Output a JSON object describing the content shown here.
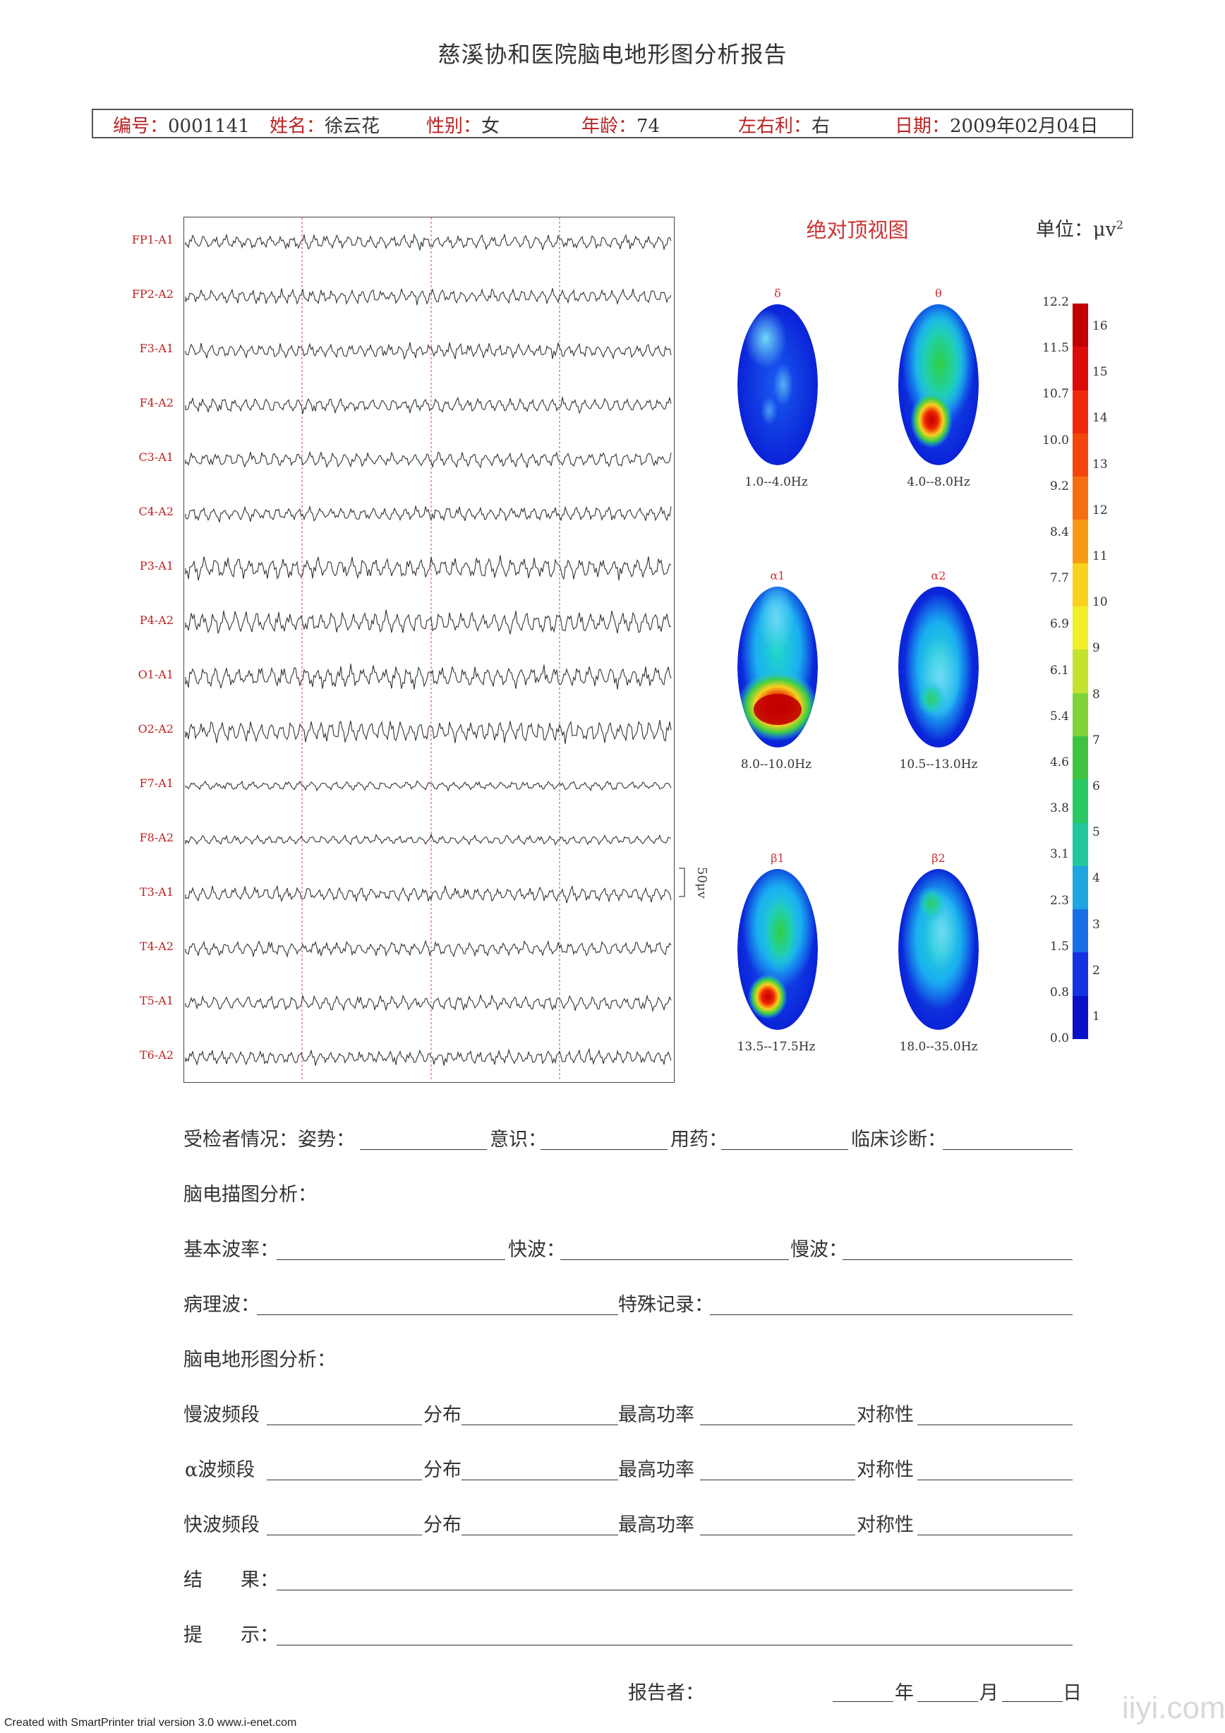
{
  "title": "慈溪协和医院脑电地形图分析报告",
  "info": {
    "id_label": "编号：",
    "id_value": "0001141",
    "name_label": "姓名：",
    "name_value": "徐云花",
    "sex_label": "性别：",
    "sex_value": "女",
    "age_label": "年龄：",
    "age_value": "74",
    "hand_label": "左右利：",
    "hand_value": "右",
    "date_label": "日期：",
    "date_value": "2009年02月04日"
  },
  "channels": [
    "FP1-A1",
    "FP2-A2",
    "F3-A1",
    "F4-A2",
    "C3-A1",
    "C4-A2",
    "P3-A1",
    "P4-A2",
    "O1-A1",
    "O2-A2",
    "F7-A1",
    "F8-A2",
    "T3-A1",
    "T4-A2",
    "T5-A1",
    "T6-A2"
  ],
  "calibration_label": "50μv",
  "maps": {
    "title": "绝对顶视图",
    "unit": "单位：μv",
    "unit_sup": "2",
    "bands": [
      {
        "symbol": "δ",
        "range": "1.0--4.0Hz"
      },
      {
        "symbol": "θ",
        "range": "4.0--8.0Hz"
      },
      {
        "symbol": "α1",
        "range": "8.0--10.0Hz"
      },
      {
        "symbol": "α2",
        "range": "10.5--13.0Hz"
      },
      {
        "symbol": "β1",
        "range": "13.5--17.5Hz"
      },
      {
        "symbol": "β2",
        "range": "18.0--35.0Hz"
      }
    ],
    "scale_values": [
      "12.2",
      "11.5",
      "10.7",
      "10.0",
      "9.2",
      "8.4",
      "7.7",
      "6.9",
      "6.1",
      "5.4",
      "4.6",
      "3.8",
      "3.1",
      "2.3",
      "1.5",
      "0.8",
      "0.0"
    ],
    "scale_levels": [
      "16",
      "15",
      "14",
      "13",
      "12",
      "11",
      "10",
      "9",
      "8",
      "7",
      "6",
      "5",
      "4",
      "3",
      "2",
      "1"
    ],
    "scale_colors": [
      "#c00000",
      "#dd0a0a",
      "#ee2a0a",
      "#f3460a",
      "#f56e10",
      "#f89a14",
      "#f8d21c",
      "#f2ee28",
      "#c4e230",
      "#7fd43a",
      "#3ec43e",
      "#28c864",
      "#20c8a0",
      "#1ea6e0",
      "#1870e6",
      "#1432e0",
      "#0a10c8"
    ]
  },
  "form": {
    "row1": {
      "label": "受检者情况：姿势：",
      "f2": "意识：",
      "f3": "用药：",
      "f4": "临床诊断："
    },
    "row2": {
      "label": "脑电描图分析："
    },
    "row3": {
      "label": "基本波率：",
      "f2": "快波：",
      "f3": "慢波："
    },
    "row4": {
      "label": "病理波：",
      "f2": "特殊记录："
    },
    "row5": {
      "label": "脑电地形图分析："
    },
    "row6": {
      "label": "慢波频段",
      "f2": "分布",
      "f3": "最高功率",
      "f4": "对称性"
    },
    "row7": {
      "label": "α波频段",
      "f2": "分布",
      "f3": "最高功率",
      "f4": "对称性"
    },
    "row8": {
      "label": "快波频段",
      "f2": "分布",
      "f3": "最高功率",
      "f4": "对称性"
    },
    "row9": {
      "label": "结　　果："
    },
    "row10": {
      "label": "提　　示："
    },
    "reporter": "报告者：",
    "year": "年",
    "month": "月",
    "day": "日"
  },
  "footer": "Created with SmartPrinter trial version 3.0  www.i-enet.com",
  "watermark": "iiyi.com"
}
